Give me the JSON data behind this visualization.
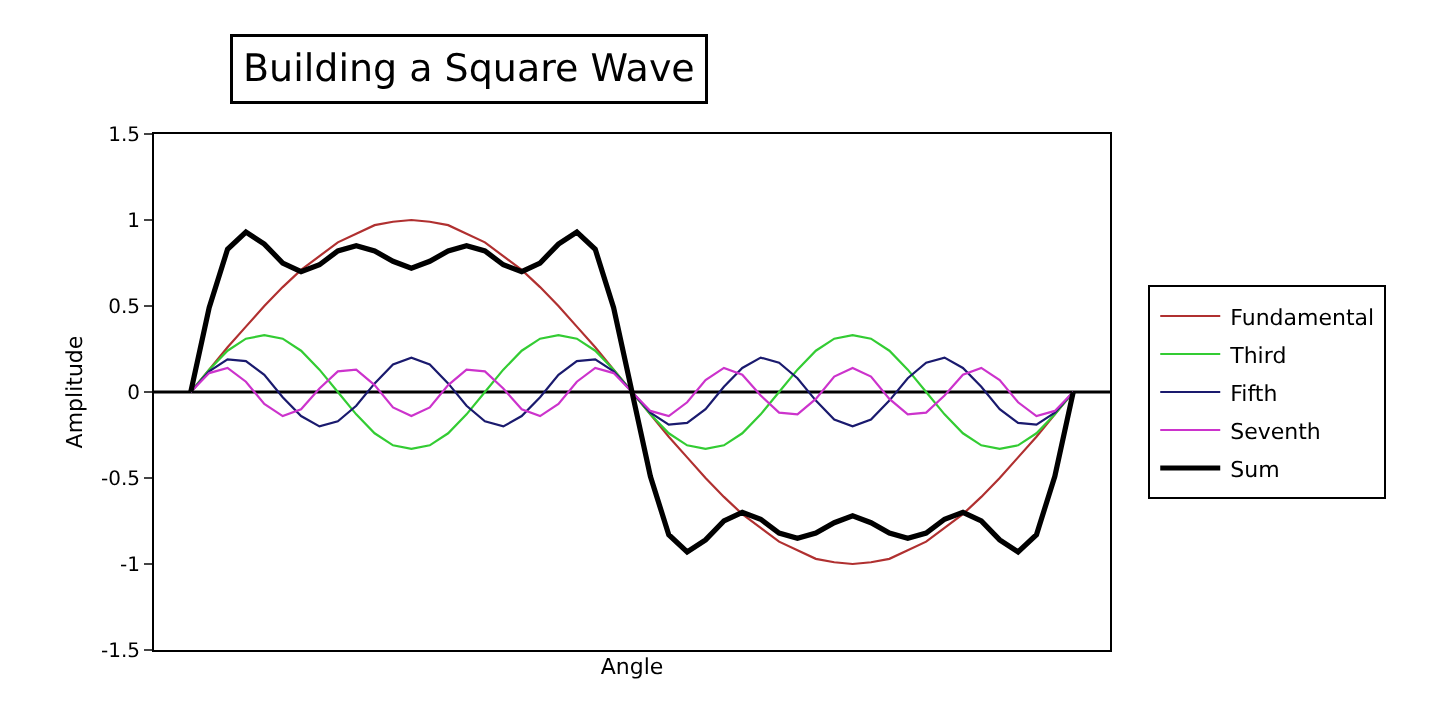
{
  "chart_data": {
    "type": "line",
    "title": "Building a Square Wave",
    "xlabel": "Angle",
    "ylabel": "Amplitude",
    "categories": [
      null,
      null,
      null,
      null,
      null,
      null,
      null,
      null,
      null,
      null,
      null,
      null,
      null,
      null,
      null,
      null,
      null,
      null,
      null,
      null,
      null,
      null,
      null,
      null,
      null,
      null,
      null,
      null,
      null,
      null,
      null,
      null,
      null,
      null,
      null,
      null,
      null,
      null,
      null,
      null,
      null,
      null,
      null,
      null,
      null,
      null,
      null,
      null,
      null,
      null,
      null,
      null,
      null
    ],
    "series": [
      {
        "name": "Fundamental",
        "color": "#b03030",
        "values": [
          null,
          null,
          0,
          0.13,
          0.26,
          0.38,
          0.5,
          0.61,
          0.71,
          0.79,
          0.87,
          0.92,
          0.97,
          0.99,
          1,
          0.99,
          0.97,
          0.92,
          0.87,
          0.79,
          0.71,
          0.61,
          0.5,
          0.38,
          0.26,
          0.13,
          0,
          -0.13,
          -0.26,
          -0.38,
          -0.5,
          -0.61,
          -0.71,
          -0.79,
          -0.87,
          -0.92,
          -0.97,
          -0.99,
          -1,
          -0.99,
          -0.97,
          -0.92,
          -0.87,
          -0.79,
          -0.71,
          -0.61,
          -0.5,
          -0.38,
          -0.26,
          -0.13,
          0,
          null,
          null
        ]
      },
      {
        "name": "Third",
        "color": "#33cc33",
        "values": [
          null,
          null,
          0,
          0.13,
          0.24,
          0.31,
          0.33,
          0.31,
          0.24,
          0.13,
          0,
          -0.13,
          -0.24,
          -0.31,
          -0.33,
          -0.31,
          -0.24,
          -0.13,
          0,
          0.13,
          0.24,
          0.31,
          0.33,
          0.31,
          0.24,
          0.13,
          0,
          -0.13,
          -0.24,
          -0.31,
          -0.33,
          -0.31,
          -0.24,
          -0.13,
          0,
          0.13,
          0.24,
          0.31,
          0.33,
          0.31,
          0.24,
          0.13,
          0,
          -0.13,
          -0.24,
          -0.31,
          -0.33,
          -0.31,
          -0.24,
          -0.13,
          0,
          null,
          null
        ]
      },
      {
        "name": "Fifth",
        "color": "#1a1a6e",
        "values": [
          null,
          null,
          0,
          0.12,
          0.19,
          0.18,
          0.1,
          -0.03,
          -0.14,
          -0.2,
          -0.17,
          -0.08,
          0.05,
          0.16,
          0.2,
          0.16,
          0.05,
          -0.08,
          -0.17,
          -0.2,
          -0.14,
          -0.03,
          0.1,
          0.18,
          0.19,
          0.12,
          0,
          -0.12,
          -0.19,
          -0.18,
          -0.1,
          0.03,
          0.14,
          0.2,
          0.17,
          0.08,
          -0.05,
          -0.16,
          -0.2,
          -0.16,
          -0.05,
          0.08,
          0.17,
          0.2,
          0.14,
          0.03,
          -0.1,
          -0.18,
          -0.19,
          -0.12,
          0,
          null,
          null
        ]
      },
      {
        "name": "Seventh",
        "color": "#cc33cc",
        "values": [
          null,
          null,
          0,
          0.11,
          0.14,
          0.06,
          -0.07,
          -0.14,
          -0.1,
          0.02,
          0.12,
          0.13,
          0.04,
          -0.09,
          -0.14,
          -0.09,
          0.04,
          0.13,
          0.12,
          0.02,
          -0.1,
          -0.14,
          -0.07,
          0.06,
          0.14,
          0.11,
          0,
          -0.11,
          -0.14,
          -0.06,
          0.07,
          0.14,
          0.1,
          -0.02,
          -0.12,
          -0.13,
          -0.04,
          0.09,
          0.14,
          0.09,
          -0.04,
          -0.13,
          -0.12,
          -0.02,
          0.1,
          0.14,
          0.07,
          -0.06,
          -0.14,
          -0.11,
          0,
          null,
          null
        ]
      },
      {
        "name": "Sum",
        "color": "#000000",
        "values": [
          null,
          null,
          0,
          0.49,
          0.83,
          0.93,
          0.86,
          0.75,
          0.7,
          0.74,
          0.82,
          0.85,
          0.82,
          0.76,
          0.72,
          0.76,
          0.82,
          0.85,
          0.82,
          0.74,
          0.7,
          0.75,
          0.86,
          0.93,
          0.83,
          0.49,
          0,
          -0.49,
          -0.83,
          -0.93,
          -0.86,
          -0.75,
          -0.7,
          -0.74,
          -0.82,
          -0.85,
          -0.82,
          -0.76,
          -0.72,
          -0.76,
          -0.82,
          -0.85,
          -0.82,
          -0.74,
          -0.7,
          -0.75,
          -0.86,
          -0.93,
          -0.83,
          -0.49,
          0,
          null,
          null
        ]
      }
    ],
    "ylim": [
      -1.5,
      1.5
    ],
    "yticks": [
      -1.5,
      -1,
      -0.5,
      0,
      0.5,
      1,
      1.5
    ],
    "ref_lines": [
      {
        "axis": "y",
        "value": 0,
        "color": "#000000"
      }
    ],
    "tick_labels": "y",
    "grid": false,
    "legend": "right",
    "marker": "none",
    "line_style": "solid"
  }
}
